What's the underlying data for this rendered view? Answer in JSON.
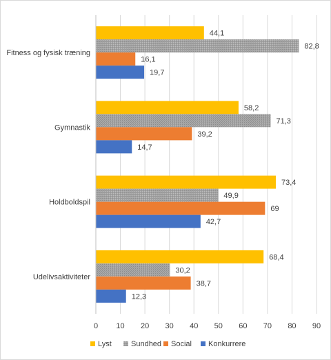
{
  "chart_data": {
    "type": "bar",
    "orientation": "horizontal",
    "categories": [
      "Fitness og fysisk træning",
      "Gymnastik",
      "Holdboldspil",
      "Udelivsaktiviteter"
    ],
    "series": [
      {
        "name": "Lyst",
        "values": [
          44.1,
          58.2,
          73.4,
          68.4
        ],
        "labels": [
          "44,1",
          "58,2",
          "73,4",
          "68,4"
        ]
      },
      {
        "name": "Sundhed",
        "values": [
          82.8,
          71.3,
          49.9,
          30.2
        ],
        "labels": [
          "82,8",
          "71,3",
          "49,9",
          "30,2"
        ]
      },
      {
        "name": "Social",
        "values": [
          16.1,
          39.2,
          69,
          38.7
        ],
        "labels": [
          "16,1",
          "39,2",
          "69",
          "38,7"
        ]
      },
      {
        "name": "Konkurrere",
        "values": [
          19.7,
          14.7,
          42.7,
          12.3
        ],
        "labels": [
          "19,7",
          "14,7",
          "42,7",
          "12,3"
        ]
      }
    ],
    "series_colors": [
      "#FFC000",
      "#A5A5A5",
      "#ED7D31",
      "#4472C4"
    ],
    "xlim": [
      0,
      90
    ],
    "xticks": [
      "0",
      "10",
      "20",
      "30",
      "40",
      "50",
      "60",
      "70",
      "80",
      "90"
    ],
    "grid": true,
    "legend_position": "bottom"
  }
}
